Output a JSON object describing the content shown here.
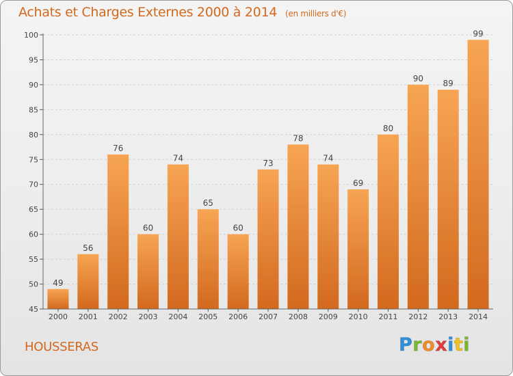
{
  "chart_data": {
    "type": "bar",
    "title": "Achats et Charges Externes 2000 à 2014",
    "unit": "(en milliers d'€)",
    "categories": [
      "2000",
      "2001",
      "2002",
      "2003",
      "2004",
      "2005",
      "2006",
      "2007",
      "2008",
      "2009",
      "2010",
      "2011",
      "2012",
      "2013",
      "2014"
    ],
    "values": [
      49,
      56,
      76,
      60,
      74,
      65,
      60,
      73,
      78,
      74,
      69,
      80,
      90,
      89,
      99
    ],
    "ylim": [
      45,
      100
    ],
    "yticks": [
      45,
      50,
      55,
      60,
      65,
      70,
      75,
      80,
      85,
      90,
      95,
      100
    ],
    "grid": true,
    "bar_color_top": "#f7a553",
    "bar_color_bottom": "#d2691e"
  },
  "commune": "HOUSSERAS",
  "logo": {
    "letters": [
      {
        "char": "P",
        "color": "#2f8fd8"
      },
      {
        "char": "r",
        "color": "#7cb82f"
      },
      {
        "char": "o",
        "color": "#f28c28"
      },
      {
        "char": "x",
        "color": "#e23c3c"
      },
      {
        "char": "i",
        "color": "#2f8fd8"
      },
      {
        "char": "t",
        "color": "#f2c21b"
      },
      {
        "char": "i",
        "color": "#7cb82f"
      }
    ]
  }
}
